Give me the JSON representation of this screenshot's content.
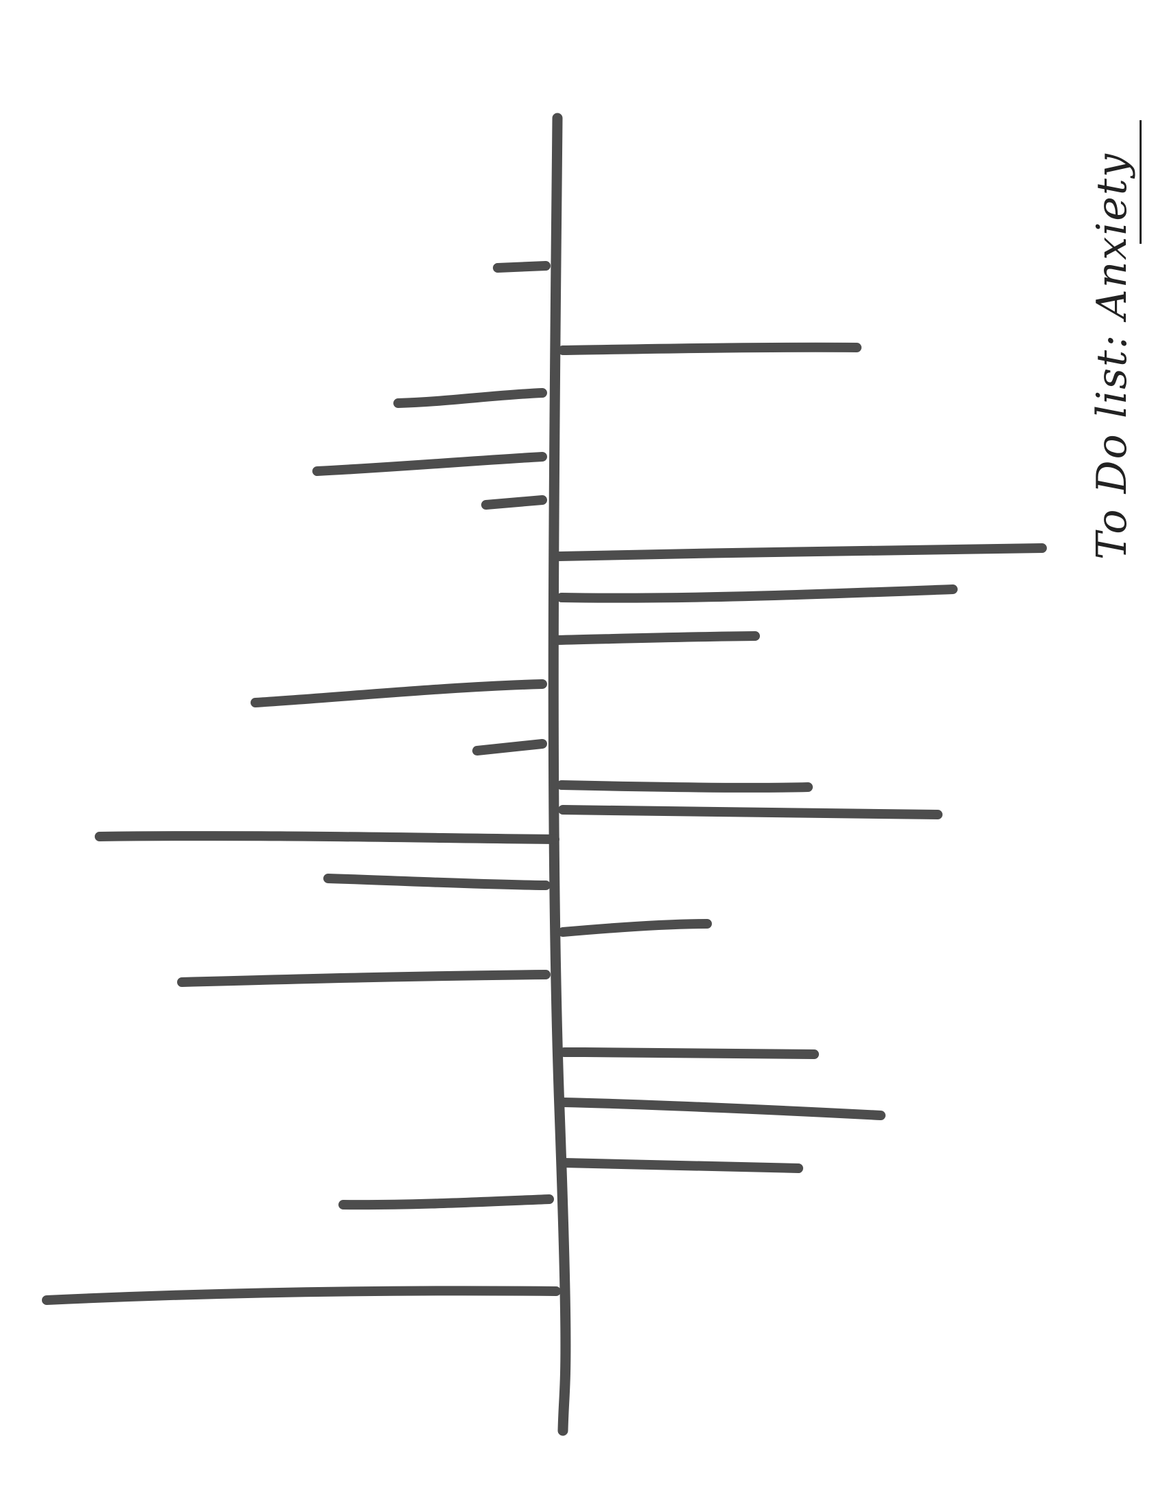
{
  "title": "To Do list: Anxiety",
  "ink_color": "#4d4d4d",
  "background_color": "#ffffff"
}
